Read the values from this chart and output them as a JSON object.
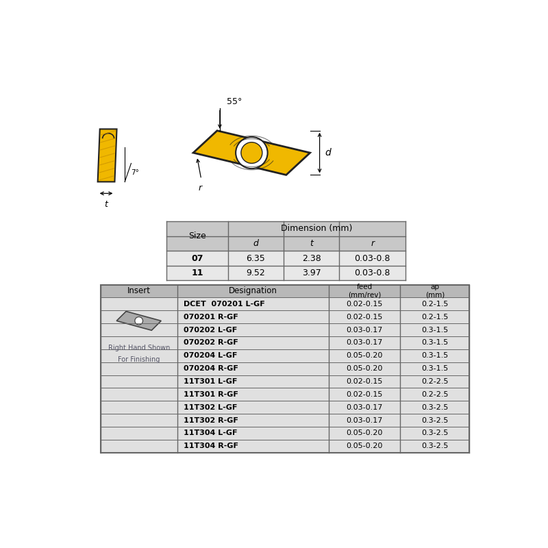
{
  "bg_color": "#ffffff",
  "dim_table": {
    "header_bg": "#c8c8c8",
    "row_bg_alt": "#e8e8e8",
    "border_color": "#666666",
    "sizes": [
      "07",
      "11"
    ],
    "d_vals": [
      "6.35",
      "9.52"
    ],
    "t_vals": [
      "2.38",
      "3.97"
    ],
    "r_vals": [
      "0.03-0.8",
      "0.03-0.8"
    ]
  },
  "insert_table": {
    "header_bg": "#b8b8b8",
    "row_bg": "#e0e0e0",
    "border_color": "#666666",
    "designations": [
      "DCET  070201 L-GF",
      "070201 R-GF",
      "070202 L-GF",
      "070202 R-GF",
      "070204 L-GF",
      "070204 R-GF",
      "11T301 L-GF",
      "11T301 R-GF",
      "11T302 L-GF",
      "11T302 R-GF",
      "11T304 L-GF",
      "11T304 R-GF"
    ],
    "feed_vals": [
      "0.02-0.15",
      "0.02-0.15",
      "0.03-0.17",
      "0.03-0.17",
      "0.05-0.20",
      "0.05-0.20",
      "0.02-0.15",
      "0.02-0.15",
      "0.03-0.17",
      "0.03-0.17",
      "0.05-0.20",
      "0.05-0.20"
    ],
    "ap_vals": [
      "0.2-1.5",
      "0.2-1.5",
      "0.3-1.5",
      "0.3-1.5",
      "0.3-1.5",
      "0.3-1.5",
      "0.2-2.5",
      "0.2-2.5",
      "0.3-2.5",
      "0.3-2.5",
      "0.3-2.5",
      "0.3-2.5"
    ]
  },
  "insert_yellow": "#f0b800",
  "insert_yellow_dark": "#c89000",
  "insert_dark": "#222222",
  "angle_55": "55°",
  "angle_7": "7°"
}
